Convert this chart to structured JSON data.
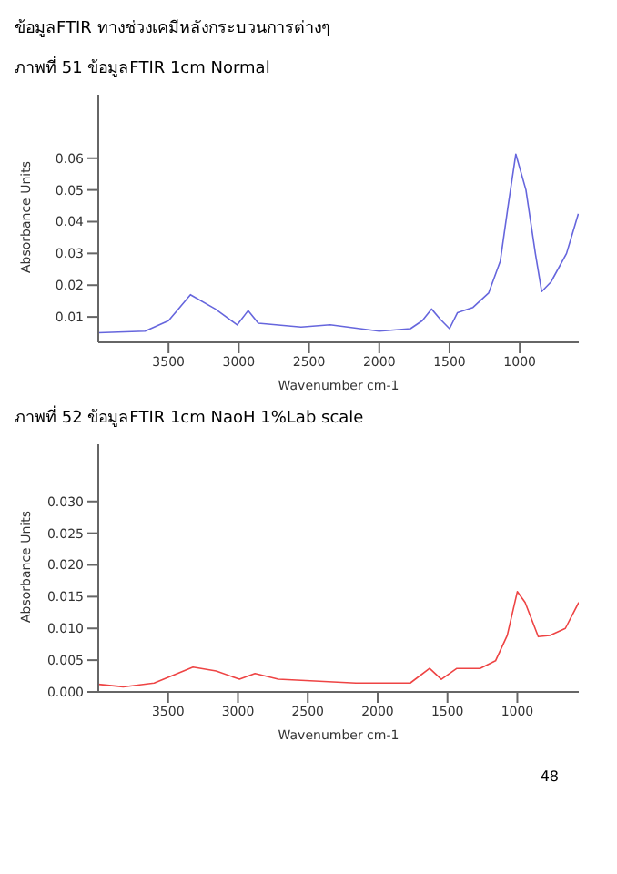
{
  "chart_data": [
    {
      "type": "line",
      "title": "ภาพที่ 51 ข้อมูลFTIR 1cm Normal",
      "annotations": [
        "ข้อมูลFTIR ทางช่วงเคมีหลังกระบวนการต่างๆ"
      ],
      "xlabel": "Wavenumber cm-1",
      "ylabel": "Absorbance Units",
      "xlim": [
        4000,
        580
      ],
      "xticks": [
        3500,
        3000,
        2500,
        2000,
        1500,
        1000
      ],
      "ylim": [
        0.002,
        0.08
      ],
      "yticks": [
        0.01,
        0.02,
        0.03,
        0.04,
        0.05,
        0.06
      ],
      "grid": false,
      "legend": false,
      "x": [
        4000,
        3667,
        3500,
        3344,
        3167,
        3011,
        2933,
        2861,
        2556,
        2350,
        2000,
        1778,
        1694,
        1628,
        1567,
        1500,
        1444,
        1333,
        1222,
        1139,
        1083,
        1028,
        956,
        889,
        844,
        778,
        667,
        583
      ],
      "series": [
        {
          "color": "#6666dd",
          "values": [
            0.005,
            0.0055,
            0.0088,
            0.017,
            0.0125,
            0.0075,
            0.012,
            0.008,
            0.0068,
            0.0075,
            0.0055,
            0.0063,
            0.0088,
            0.0125,
            0.0093,
            0.0063,
            0.0113,
            0.013,
            0.0175,
            0.0275,
            0.045,
            0.0613,
            0.05,
            0.03,
            0.018,
            0.021,
            0.03,
            0.0425
          ]
        }
      ]
    },
    {
      "type": "line",
      "title": "ภาพที่ 52 ข้อมูลFTIR 1cm NaoH 1%Lab scale",
      "annotations": [
        "48"
      ],
      "xlabel": "Wavenumber cm-1",
      "ylabel": "Absorbance Units",
      "xlim": [
        4000,
        560
      ],
      "xticks": [
        3500,
        3000,
        2500,
        2000,
        1500,
        1000
      ],
      "ylim": [
        0,
        0.039
      ],
      "yticks": [
        {
          "value": 0,
          "label": "0.000"
        },
        0.005,
        {
          "value": 0.01,
          "label": "0.010"
        },
        0.015,
        {
          "value": 0.02,
          "label": "0.020"
        },
        0.025,
        {
          "value": 0.03,
          "label": "0.030"
        }
      ],
      "grid": false,
      "legend": false,
      "x": [
        4000,
        3822,
        3600,
        3322,
        3156,
        2989,
        2878,
        2711,
        2156,
        1767,
        1628,
        1544,
        1433,
        1267,
        1156,
        1072,
        1000,
        944,
        850,
        767,
        656,
        560
      ],
      "series": [
        {
          "color": "#ee4444",
          "values": [
            0.0012,
            0.0008,
            0.0014,
            0.0039,
            0.0033,
            0.002,
            0.0029,
            0.002,
            0.0014,
            0.0014,
            0.0037,
            0.002,
            0.0037,
            0.0037,
            0.0049,
            0.0089,
            0.0158,
            0.0141,
            0.0087,
            0.0089,
            0.01,
            0.0141
          ]
        }
      ]
    }
  ]
}
